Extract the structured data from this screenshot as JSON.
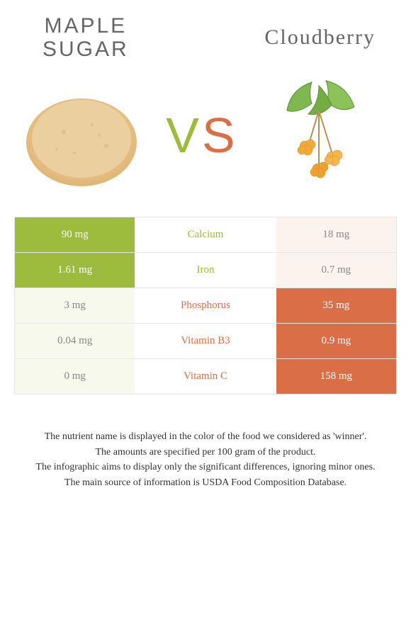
{
  "colors": {
    "left": "#9dbb3c",
    "right": "#da6f47",
    "left_dim": "#f6f9ec",
    "right_dim": "#fcf2ee",
    "title": "#656565"
  },
  "left_food": {
    "title_line1": "MAPLE",
    "title_line2": "SUGAR"
  },
  "right_food": {
    "title": "Cloudberry"
  },
  "vs": {
    "v": "V",
    "s": "S"
  },
  "rows": [
    {
      "nutrient": "Calcium",
      "left": "90 mg",
      "right": "18 mg",
      "winner": "left"
    },
    {
      "nutrient": "Iron",
      "left": "1.61 mg",
      "right": "0.7 mg",
      "winner": "left"
    },
    {
      "nutrient": "Phosphorus",
      "left": "3 mg",
      "right": "35 mg",
      "winner": "right"
    },
    {
      "nutrient": "Vitamin B3",
      "left": "0.04 mg",
      "right": "0.9 mg",
      "winner": "right"
    },
    {
      "nutrient": "Vitamin C",
      "left": "0 mg",
      "right": "158 mg",
      "winner": "right"
    }
  ],
  "footnotes": [
    "The nutrient name is displayed in the color of the food we considered as 'winner'.",
    "The amounts are specified per 100 gram of the product.",
    "The infographic aims to display only the significant differences, ignoring minor ones.",
    "The main source of information is USDA Food Composition Database."
  ]
}
